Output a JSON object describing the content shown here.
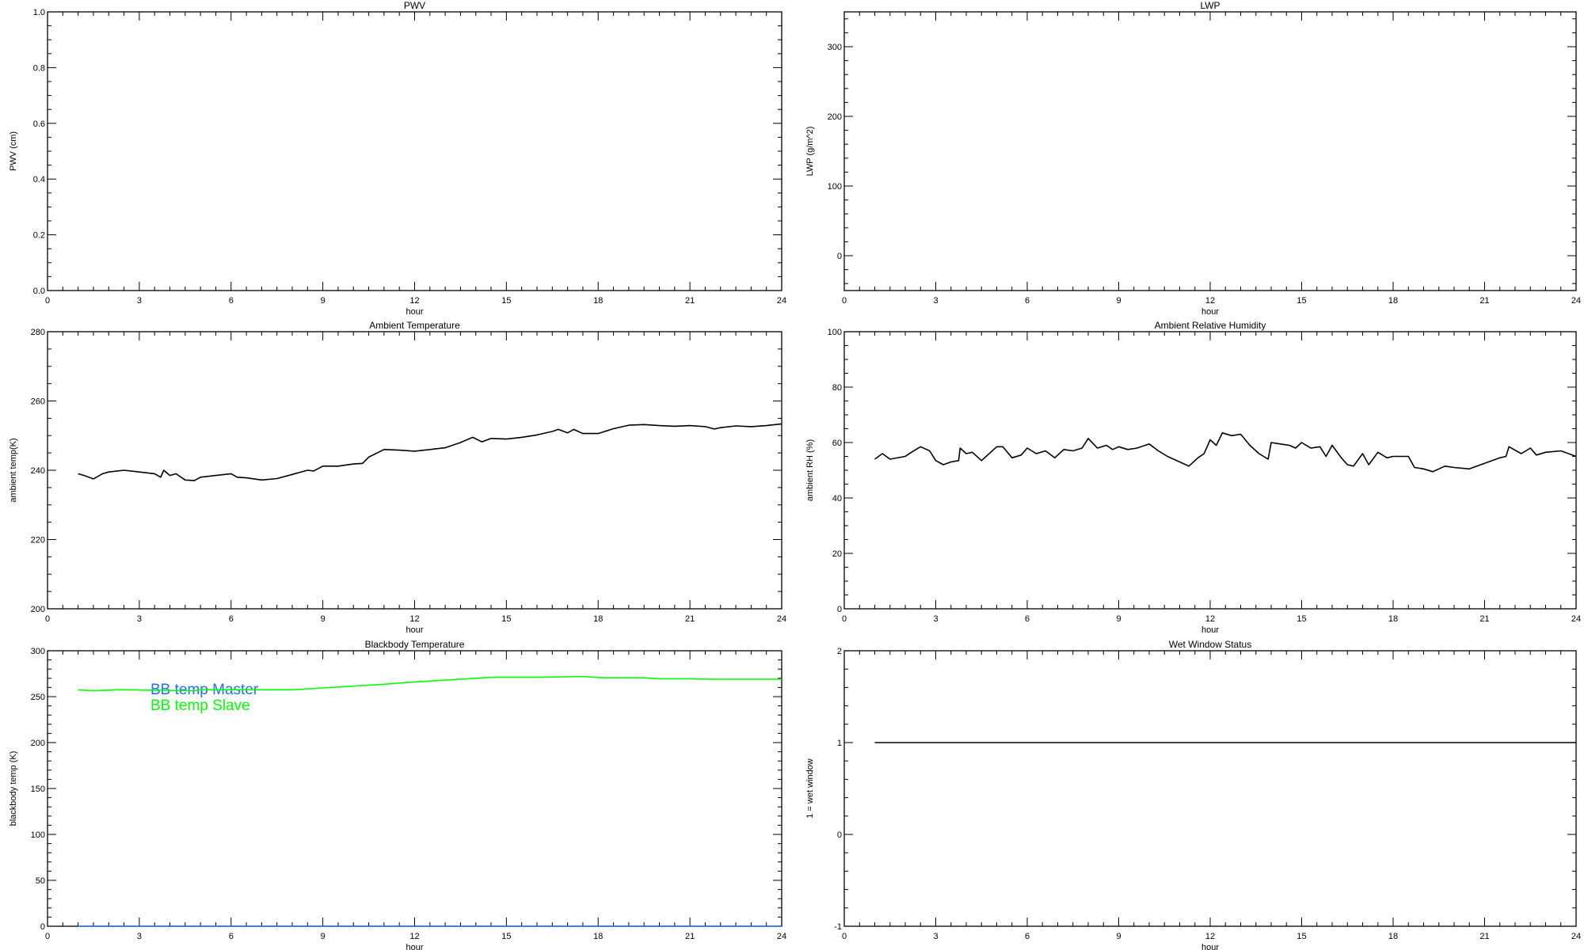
{
  "chart_data": [
    {
      "type": "line",
      "title": "PWV",
      "xlabel": "hour",
      "ylabel": "PWV (cm)",
      "xlim": [
        0,
        24
      ],
      "ylim": [
        0,
        1
      ],
      "xticks": [
        0,
        3,
        6,
        9,
        12,
        15,
        18,
        21,
        24
      ],
      "yticks": [
        0.0,
        0.2,
        0.4,
        0.6,
        0.8,
        1.0
      ],
      "ytick_labels": [
        "0.0",
        "0.2",
        "0.4",
        "0.6",
        "0.8",
        "1.0"
      ],
      "x_minor": 0.5,
      "y_minor": 0.05,
      "series": []
    },
    {
      "type": "line",
      "title": "LWP",
      "xlabel": "hour",
      "ylabel": "LWP (g/m^2)",
      "xlim": [
        0,
        24
      ],
      "ylim": [
        -50,
        350
      ],
      "xticks": [
        0,
        3,
        6,
        9,
        12,
        15,
        18,
        21,
        24
      ],
      "yticks": [
        0,
        100,
        200,
        300
      ],
      "ytick_labels": [
        "0",
        "100",
        "200",
        "300"
      ],
      "x_minor": 0.5,
      "y_minor": 20,
      "series": []
    },
    {
      "type": "line",
      "title": "Ambient Temperature",
      "xlabel": "hour",
      "ylabel": "ambient temp(K)",
      "xlim": [
        0,
        24
      ],
      "ylim": [
        200,
        280
      ],
      "xticks": [
        0,
        3,
        6,
        9,
        12,
        15,
        18,
        21,
        24
      ],
      "yticks": [
        200,
        220,
        240,
        260,
        280
      ],
      "ytick_labels": [
        "200",
        "220",
        "240",
        "260",
        "280"
      ],
      "x_minor": 0.5,
      "y_minor": 5,
      "series": [
        {
          "color": "#000000",
          "x": [
            1.0,
            1.2,
            1.5,
            1.8,
            2.0,
            2.5,
            3.0,
            3.5,
            3.7,
            3.8,
            4.0,
            4.2,
            4.5,
            4.8,
            5.0,
            5.5,
            6.0,
            6.2,
            6.5,
            7.0,
            7.5,
            8.0,
            8.5,
            8.7,
            9.0,
            9.5,
            10.0,
            10.3,
            10.5,
            11.0,
            11.5,
            12.0,
            12.5,
            13.0,
            13.5,
            13.9,
            14.2,
            14.5,
            15.0,
            15.5,
            16.0,
            16.5,
            16.7,
            17.0,
            17.2,
            17.5,
            18.0,
            18.5,
            19.0,
            19.5,
            20.0,
            20.5,
            21.0,
            21.5,
            21.8,
            22.0,
            22.5,
            23.0,
            23.5,
            24.0
          ],
          "y": [
            239.0,
            238.5,
            237.5,
            239.0,
            239.5,
            240.0,
            239.5,
            239.0,
            238.0,
            240.0,
            238.5,
            239.0,
            237.2,
            237.0,
            238.0,
            238.5,
            239.0,
            238.0,
            237.8,
            237.2,
            237.6,
            238.8,
            240.0,
            239.8,
            241.2,
            241.2,
            241.8,
            242.0,
            243.8,
            246.0,
            245.8,
            245.5,
            246.0,
            246.5,
            248.0,
            249.5,
            248.2,
            249.2,
            249.0,
            249.5,
            250.2,
            251.2,
            251.8,
            250.8,
            251.8,
            250.6,
            250.6,
            252.0,
            253.0,
            253.2,
            252.9,
            252.7,
            252.9,
            252.6,
            251.9,
            252.3,
            252.8,
            252.6,
            252.9,
            253.4
          ]
        }
      ]
    },
    {
      "type": "line",
      "title": "Ambient Relative Humidity",
      "xlabel": "hour",
      "ylabel": "ambient RH (%)",
      "xlim": [
        0,
        24
      ],
      "ylim": [
        0,
        100
      ],
      "xticks": [
        0,
        3,
        6,
        9,
        12,
        15,
        18,
        21,
        24
      ],
      "yticks": [
        0,
        20,
        40,
        60,
        80,
        100
      ],
      "ytick_labels": [
        "0",
        "20",
        "40",
        "60",
        "80",
        "100"
      ],
      "x_minor": 0.5,
      "y_minor": 5,
      "series": [
        {
          "color": "#000000",
          "x": [
            1.0,
            1.25,
            1.5,
            2.0,
            2.2,
            2.5,
            2.8,
            3.0,
            3.25,
            3.5,
            3.75,
            3.8,
            4.0,
            4.2,
            4.5,
            5.0,
            5.2,
            5.5,
            5.8,
            6.0,
            6.3,
            6.6,
            6.9,
            7.2,
            7.5,
            7.8,
            8.0,
            8.3,
            8.6,
            8.8,
            9.0,
            9.3,
            9.6,
            10.0,
            10.3,
            10.6,
            11.0,
            11.3,
            11.6,
            11.8,
            12.0,
            12.2,
            12.4,
            12.7,
            13.0,
            13.3,
            13.6,
            13.9,
            14.0,
            14.3,
            14.6,
            14.8,
            15.0,
            15.3,
            15.6,
            15.8,
            16.0,
            16.3,
            16.5,
            16.7,
            17.0,
            17.2,
            17.5,
            17.8,
            18.0,
            18.5,
            18.7,
            19.0,
            19.3,
            19.7,
            20.0,
            20.5,
            21.0,
            21.5,
            21.7,
            21.8,
            22.2,
            22.5,
            22.7,
            23.0,
            23.5,
            24.0
          ],
          "y": [
            54.0,
            56.0,
            54.0,
            55.0,
            56.5,
            58.5,
            57.0,
            53.5,
            52.0,
            53.0,
            53.5,
            58.0,
            56.0,
            56.5,
            53.5,
            58.5,
            58.5,
            54.5,
            55.5,
            58.0,
            56.0,
            57.0,
            54.5,
            57.5,
            57.0,
            58.0,
            61.5,
            58.0,
            59.0,
            57.5,
            58.5,
            57.5,
            58.0,
            59.5,
            57.0,
            55.0,
            53.0,
            51.5,
            54.5,
            56.0,
            61.0,
            59.0,
            63.5,
            62.5,
            63.0,
            59.0,
            56.0,
            54.0,
            60.0,
            59.5,
            59.0,
            58.0,
            60.0,
            58.0,
            58.5,
            55.0,
            59.0,
            54.5,
            52.0,
            51.5,
            56.0,
            52.0,
            56.5,
            54.5,
            55.0,
            55.0,
            51.0,
            50.5,
            49.5,
            51.5,
            51.0,
            50.5,
            52.5,
            54.5,
            55.0,
            58.5,
            56.0,
            58.0,
            55.5,
            56.5,
            57.0,
            55.0
          ]
        }
      ]
    },
    {
      "type": "line",
      "title": "Blackbody Temperature",
      "xlabel": "hour",
      "ylabel": "blackbody temp (K)",
      "xlim": [
        0,
        24
      ],
      "ylim": [
        0,
        300
      ],
      "xticks": [
        0,
        3,
        6,
        9,
        12,
        15,
        18,
        21,
        24
      ],
      "yticks": [
        0,
        50,
        100,
        150,
        200,
        250,
        300
      ],
      "ytick_labels": [
        "0",
        "50",
        "100",
        "150",
        "200",
        "250",
        "300"
      ],
      "x_minor": 0.5,
      "y_minor": 10,
      "legend": "top-left",
      "series": [
        {
          "name": "BB temp Master",
          "color": "#1e6eff",
          "x": [
            1,
            24
          ],
          "y": [
            0,
            0
          ]
        },
        {
          "name": "BB temp Slave",
          "color": "#00ff00",
          "x": [
            1.0,
            1.5,
            2.3,
            4.8,
            5.0,
            8.0,
            9.0,
            10.0,
            11.0,
            12.0,
            13.0,
            14.0,
            14.5,
            16.0,
            17.5,
            18.2,
            19.5,
            20.0,
            21.0,
            21.8,
            24.0
          ],
          "y": [
            257.5,
            256.5,
            257.5,
            256.5,
            257.5,
            257.5,
            259.5,
            261.5,
            263.5,
            266.0,
            268.0,
            270.0,
            271.0,
            271.0,
            272.0,
            270.5,
            270.5,
            269.5,
            269.5,
            269.0,
            269.0
          ]
        }
      ]
    },
    {
      "type": "line",
      "title": "Wet Window Status",
      "xlabel": "hour",
      "ylabel": "1 = wet window",
      "xlim": [
        0,
        24
      ],
      "ylim": [
        -1,
        2
      ],
      "xticks": [
        0,
        3,
        6,
        9,
        12,
        15,
        18,
        21,
        24
      ],
      "yticks": [
        -1,
        0,
        1,
        2
      ],
      "ytick_labels": [
        "-1",
        "0",
        "1",
        "2"
      ],
      "x_minor": 0.5,
      "y_minor": 0.2,
      "series": [
        {
          "color": "#000000",
          "x": [
            1,
            24
          ],
          "y": [
            1,
            1
          ]
        }
      ]
    }
  ]
}
